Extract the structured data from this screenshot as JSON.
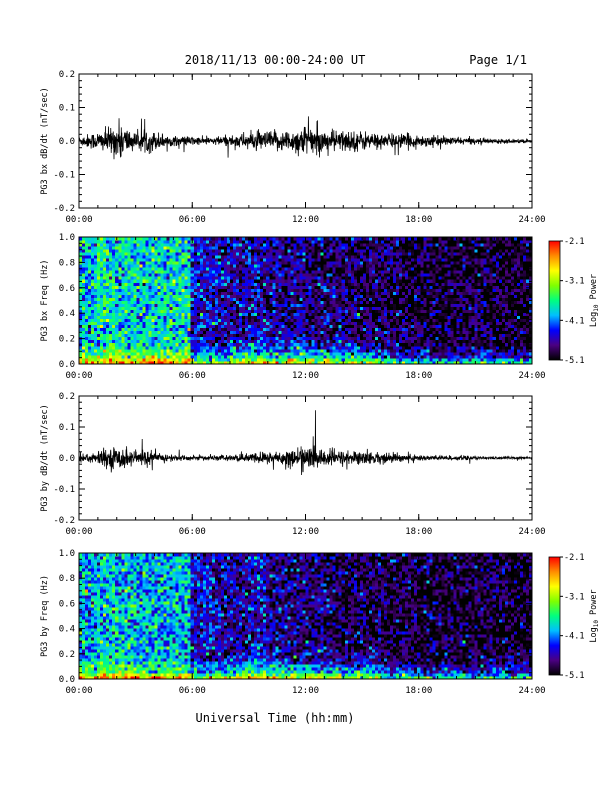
{
  "header": {
    "title": "2018/11/13  00:00-24:00 UT",
    "page": "Page 1/1"
  },
  "xlabel": "Universal Time (hh:mm)",
  "chart_data": [
    {
      "type": "line",
      "ylabel": "PG3 bx dB/dt (nT/sec)",
      "xlim": [
        0,
        24
      ],
      "ylim": [
        -0.2,
        0.2
      ],
      "x_ticks": [
        "00:00",
        "06:00",
        "12:00",
        "18:00",
        "24:00"
      ],
      "y_ticks": [
        "0.2",
        "0.1",
        "0.0",
        "-0.1",
        "-0.2"
      ],
      "y_tick_values": [
        0.2,
        0.1,
        0.0,
        -0.1,
        -0.2
      ],
      "envelope": {
        "x_hours": [
          0,
          0.5,
          1,
          1.5,
          2,
          2.2,
          2.5,
          3,
          3.5,
          4,
          4.5,
          5,
          5.5,
          6,
          6.5,
          7,
          8,
          9,
          10,
          11,
          11.5,
          12,
          12.5,
          13,
          14,
          15,
          16,
          17,
          18,
          19,
          20,
          21,
          22,
          23,
          24
        ],
        "amplitude": [
          0.02,
          0.03,
          0.04,
          0.05,
          0.07,
          0.08,
          0.06,
          0.03,
          0.05,
          0.04,
          0.03,
          0.02,
          0.02,
          0.02,
          0.015,
          0.015,
          0.025,
          0.035,
          0.04,
          0.045,
          0.05,
          0.07,
          0.05,
          0.045,
          0.045,
          0.04,
          0.03,
          0.03,
          0.025,
          0.02,
          0.015,
          0.012,
          0.01,
          0.008,
          0.008
        ]
      }
    },
    {
      "type": "heatmap",
      "ylabel": "PG3 bx Freq (Hz)",
      "xlim": [
        0,
        24
      ],
      "ylim": [
        0,
        1
      ],
      "x_ticks": [
        "00:00",
        "06:00",
        "12:00",
        "18:00",
        "24:00"
      ],
      "y_ticks": [
        "1.0",
        "0.8",
        "0.6",
        "0.4",
        "0.2",
        "0.0"
      ],
      "y_tick_values": [
        1.0,
        0.8,
        0.6,
        0.4,
        0.2,
        0.0
      ],
      "colorbar": {
        "label": "Log10 Power",
        "label_main": "Log",
        "label_sub": "10",
        "label_tail": " Power",
        "range": [
          -5.1,
          -2.1
        ],
        "ticks": [
          "-2.1",
          "-3.1",
          "-4.1",
          "-5.1"
        ],
        "tick_values": [
          -2.1,
          -3.1,
          -4.1,
          -5.1
        ],
        "colors": [
          "#000000",
          "#4b0082",
          "#0000ff",
          "#00bfff",
          "#00ff7f",
          "#7fff00",
          "#ffff00",
          "#ff8c00",
          "#ff0000"
        ]
      },
      "background_log_power_by_hour": [
        -3.9,
        -3.8,
        -3.8,
        -3.8,
        -3.8,
        -3.8,
        -4.5,
        -4.6,
        -4.6,
        -4.6,
        -4.7,
        -4.7,
        -4.8,
        -4.8,
        -4.85,
        -4.9,
        -4.9,
        -4.95,
        -4.95,
        -5.0,
        -5.0,
        -5.0,
        -5.0,
        -5.0,
        -5.0
      ]
    },
    {
      "type": "line",
      "ylabel": "PG3 by dB/dt (nT/sec)",
      "xlim": [
        0,
        24
      ],
      "ylim": [
        -0.2,
        0.2
      ],
      "x_ticks": [
        "00:00",
        "06:00",
        "12:00",
        "18:00",
        "24:00"
      ],
      "y_ticks": [
        "0.2",
        "0.1",
        "0.0",
        "-0.1",
        "-0.2"
      ],
      "y_tick_values": [
        0.2,
        0.1,
        0.0,
        -0.1,
        -0.2
      ],
      "envelope": {
        "x_hours": [
          0,
          0.5,
          1,
          1.5,
          2,
          2.5,
          3,
          3.5,
          4,
          4.5,
          5,
          5.5,
          6,
          6.5,
          7,
          8,
          9,
          10,
          11,
          11.5,
          12,
          12.5,
          13,
          14,
          15,
          16,
          17,
          18,
          19,
          20,
          21,
          22,
          23,
          24
        ],
        "amplitude": [
          0.02,
          0.025,
          0.03,
          0.04,
          0.05,
          0.045,
          0.03,
          0.035,
          0.025,
          0.02,
          0.015,
          0.012,
          0.01,
          0.01,
          0.01,
          0.012,
          0.02,
          0.03,
          0.035,
          0.04,
          0.06,
          0.045,
          0.04,
          0.035,
          0.03,
          0.025,
          0.02,
          0.015,
          0.012,
          0.01,
          0.008,
          0.006,
          0.005,
          0.005
        ]
      }
    },
    {
      "type": "heatmap",
      "ylabel": "PG3 by Freq (Hz)",
      "xlim": [
        0,
        24
      ],
      "ylim": [
        0,
        1
      ],
      "x_ticks": [
        "00:00",
        "06:00",
        "12:00",
        "18:00",
        "24:00"
      ],
      "y_ticks": [
        "1.0",
        "0.8",
        "0.6",
        "0.4",
        "0.2",
        "0.0"
      ],
      "y_tick_values": [
        1.0,
        0.8,
        0.6,
        0.4,
        0.2,
        0.0
      ],
      "colorbar": {
        "label": "Log10 Power",
        "label_main": "Log",
        "label_sub": "10",
        "label_tail": " Power",
        "range": [
          -5.1,
          -2.1
        ],
        "ticks": [
          "-2.1",
          "-3.1",
          "-4.1",
          "-5.1"
        ],
        "tick_values": [
          -2.1,
          -3.1,
          -4.1,
          -5.1
        ],
        "colors": [
          "#000000",
          "#4b0082",
          "#0000ff",
          "#00bfff",
          "#00ff7f",
          "#7fff00",
          "#ffff00",
          "#ff8c00",
          "#ff0000"
        ]
      },
      "background_log_power_by_hour": [
        -4.0,
        -3.9,
        -3.9,
        -3.95,
        -3.95,
        -3.95,
        -4.55,
        -4.6,
        -4.65,
        -4.5,
        -4.7,
        -4.8,
        -4.8,
        -4.85,
        -4.9,
        -4.9,
        -4.95,
        -4.95,
        -5.0,
        -5.0,
        -5.0,
        -5.0,
        -5.0,
        -5.0,
        -5.0
      ]
    }
  ]
}
